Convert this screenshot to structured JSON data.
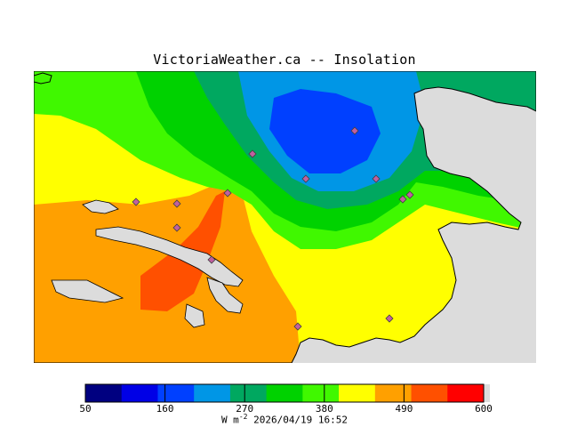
{
  "title": "VictoriaWeather.ca -- Insolation",
  "footer": {
    "unit_main": "W m",
    "unit_exp": "-2",
    "timestamp": "2026/04/19 16:52"
  },
  "colorbar": {
    "min": 50,
    "max": 600,
    "tick_labels": [
      "50",
      "160",
      "270",
      "380",
      "490",
      "600"
    ],
    "tick_values": [
      50,
      160,
      270,
      380,
      490,
      600
    ],
    "colors": [
      "#000080",
      "#0000e6",
      "#0040ff",
      "#0096e6",
      "#00a860",
      "#00d200",
      "#40f800",
      "#ffff00",
      "#ffa000",
      "#ff5000",
      "#ff0000"
    ]
  },
  "map_colors": {
    "water": "#dcdcdc",
    "c5": "#0096e6",
    "c4": "#0040ff",
    "c6": "#00a860",
    "c7": "#00d200",
    "c8": "#40f800",
    "c9": "#ffff00",
    "c10": "#ffa000",
    "c11": "#ff5000",
    "station": "#c060a0"
  },
  "stations_count_note": ""
}
